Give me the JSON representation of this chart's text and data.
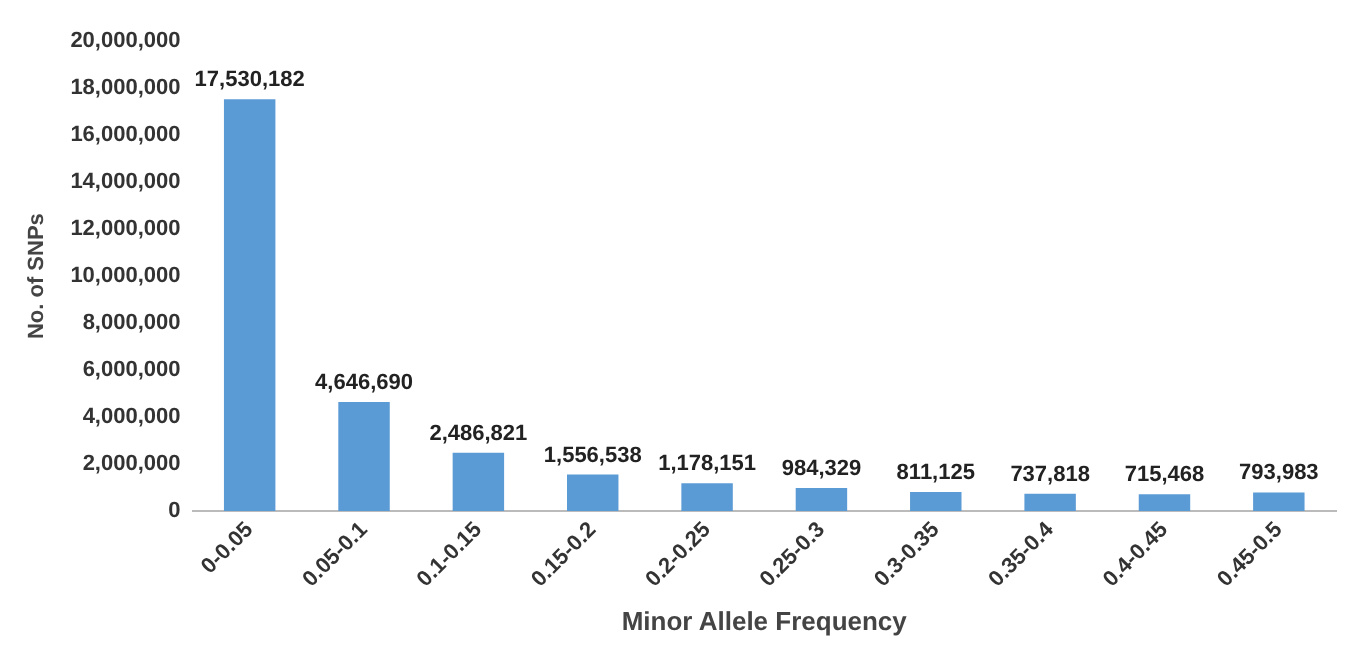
{
  "chart_data": {
    "type": "bar",
    "xlabel": "Minor Allele Frequency",
    "ylabel": "No. of SNPs",
    "categories": [
      "0-0.05",
      "0.05-0.1",
      "0.1-0.15",
      "0.15-0.2",
      "0.2-0.25",
      "0.25-0.3",
      "0.3-0.35",
      "0.35-0.4",
      "0.4-0.45",
      "0.45-0.5"
    ],
    "values": [
      17530182,
      4646690,
      2486821,
      1556538,
      1178151,
      984329,
      811125,
      737818,
      715468,
      793983
    ],
    "value_labels": [
      "17,530,182",
      "4,646,690",
      "2,486,821",
      "1,556,538",
      "1,178,151",
      "984,329",
      "811,125",
      "737,818",
      "715,468",
      "793,983"
    ],
    "color": "#5b9bd5",
    "ylim": [
      0,
      20000000
    ],
    "yticks": [
      0,
      {
        "value": 2000000,
        "label": "2,000,000"
      },
      {
        "value": 4000000,
        "label": "4,000,000"
      },
      {
        "value": 6000000,
        "label": "6,000,000"
      },
      {
        "value": 8000000,
        "label": "8,000,000"
      },
      {
        "value": 10000000,
        "label": "10,000,000"
      },
      {
        "value": 12000000,
        "label": "12,000,000"
      },
      {
        "value": 14000000,
        "label": "14,000,000"
      },
      {
        "value": 16000000,
        "label": "16,000,000"
      },
      {
        "value": 18000000,
        "label": "18,000,000"
      },
      {
        "value": 20000000,
        "label": "20,000,000"
      }
    ],
    "grid": false,
    "legend": false
  }
}
